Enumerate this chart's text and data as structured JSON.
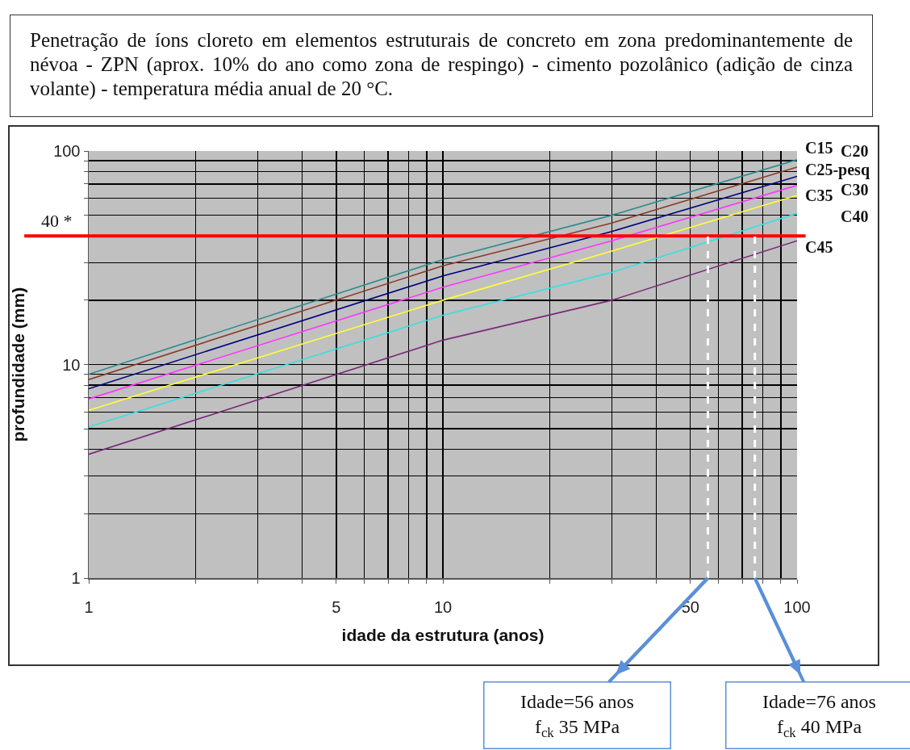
{
  "chart_data": {
    "type": "line",
    "title": "Penetração de íons cloreto em elementos estruturais de concreto em zona predominantemente de névoa - ZPN (aprox. 10% do ano como zona de respingo) - cimento pozolânico (adição de cinza volante) - temperatura média anual de 20 °C.",
    "xlabel": "idade da estrutura (anos)",
    "ylabel": "profundidade (mm)",
    "x": [
      1,
      10,
      30,
      100
    ],
    "series": [
      {
        "name": "C15",
        "color": "#2e8b8b",
        "values": [
          9.0,
          31,
          50,
          91
        ]
      },
      {
        "name": "C20",
        "color": "#8b3a2a",
        "values": [
          8.5,
          29,
          46,
          84
        ]
      },
      {
        "name": "C25-pesq",
        "color": "#000080",
        "values": [
          7.7,
          26,
          42,
          76
        ]
      },
      {
        "name": "C30",
        "color": "#ff33ff",
        "values": [
          6.9,
          23,
          38,
          69
        ]
      },
      {
        "name": "C35",
        "color": "#ffff33",
        "values": [
          6.1,
          20,
          34,
          62
        ]
      },
      {
        "name": "C40",
        "color": "#33e0e0",
        "values": [
          5.1,
          17,
          27,
          51
        ]
      },
      {
        "name": "C45",
        "color": "#7a2a7a",
        "values": [
          3.8,
          13,
          20,
          38
        ]
      }
    ],
    "log": "xy",
    "xlim": [
      1,
      100
    ],
    "ylim": [
      1,
      100
    ],
    "xticks": [
      1,
      {
        "value": 2,
        "label": null
      },
      {
        "value": 3,
        "label": null
      },
      {
        "value": 4,
        "label": null
      },
      5,
      {
        "value": 6,
        "label": null
      },
      {
        "value": 7,
        "label": null
      },
      {
        "value": 8,
        "label": null
      },
      {
        "value": 9,
        "label": null
      },
      10,
      {
        "value": 20,
        "label": null
      },
      {
        "value": 30,
        "label": null
      },
      {
        "value": 40,
        "label": null
      },
      50,
      {
        "value": 60,
        "label": null
      },
      {
        "value": 70,
        "label": null
      },
      {
        "value": 80,
        "label": null
      },
      {
        "value": 90,
        "label": null
      },
      100
    ],
    "yticks": [
      1,
      {
        "value": 2,
        "label": null
      },
      {
        "value": 3,
        "label": null
      },
      {
        "value": 4,
        "label": null
      },
      {
        "value": 5,
        "label": null
      },
      {
        "value": 6,
        "label": null
      },
      {
        "value": 7,
        "label": null
      },
      {
        "value": 8,
        "label": null
      },
      {
        "value": 9,
        "label": null
      },
      10,
      {
        "value": 20,
        "label": null
      },
      {
        "value": 30,
        "label": null
      },
      {
        "value": 50,
        "label": null
      },
      {
        "value": 60,
        "label": null
      },
      {
        "value": 70,
        "label": null
      },
      {
        "value": 80,
        "label": null
      },
      {
        "value": 90,
        "label": null
      },
      100
    ],
    "grid": true,
    "marker": "none",
    "line_style": "solid",
    "legend": false,
    "ref_lines": [
      {
        "axis": "y",
        "value": 40,
        "label": "40 *",
        "color": "#ff0000",
        "line_style": "solid"
      },
      {
        "axis": "x",
        "value": 56,
        "color": "#ffffff",
        "line_style": "dashed"
      },
      {
        "axis": "x",
        "value": 76,
        "color": "#ffffff",
        "line_style": "dashed"
      }
    ],
    "annotations": [
      {
        "text": "Idade=56 anos\nf$_{ck}$ 35 MPa",
        "x": 56,
        "y": 1
      },
      {
        "text": "Idade=76 anos\nf$_{ck}$ 40 MPa",
        "x": 76,
        "y": 1
      }
    ]
  }
}
